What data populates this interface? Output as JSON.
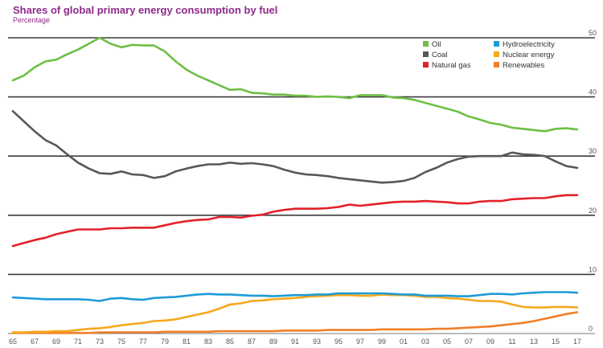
{
  "chart_data": {
    "type": "line",
    "title": "Shares of global primary energy consumption by fuel",
    "subtitle": "Percentage",
    "ylim": [
      0,
      50
    ],
    "yticks": [
      0,
      10,
      20,
      30,
      40,
      50
    ],
    "xlim": [
      1965,
      2017
    ],
    "xtick_labels": [
      "65",
      "67",
      "69",
      "71",
      "73",
      "75",
      "77",
      "79",
      "81",
      "83",
      "85",
      "87",
      "89",
      "91",
      "93",
      "95",
      "97",
      "99",
      "01",
      "03",
      "05",
      "07",
      "09",
      "11",
      "13",
      "15",
      "17"
    ],
    "grid": "horizontal",
    "legend_position": "top-right",
    "x": [
      1965,
      1966,
      1967,
      1968,
      1969,
      1970,
      1971,
      1972,
      1973,
      1974,
      1975,
      1976,
      1977,
      1978,
      1979,
      1980,
      1981,
      1982,
      1983,
      1984,
      1985,
      1986,
      1987,
      1988,
      1989,
      1990,
      1991,
      1992,
      1993,
      1994,
      1995,
      1996,
      1997,
      1998,
      1999,
      2000,
      2001,
      2002,
      2003,
      2004,
      2005,
      2006,
      2007,
      2008,
      2009,
      2010,
      2011,
      2012,
      2013,
      2014,
      2015,
      2016,
      2017
    ],
    "series": [
      {
        "name": "Oil",
        "color": "#6fbf44",
        "values": [
          42.8,
          43.6,
          45.0,
          46.0,
          46.3,
          47.2,
          48.0,
          49.0,
          50.0,
          49.0,
          48.4,
          48.8,
          48.7,
          48.7,
          47.7,
          46.0,
          44.6,
          43.6,
          42.8,
          42.0,
          41.2,
          41.3,
          40.7,
          40.6,
          40.4,
          40.4,
          40.2,
          40.2,
          40.0,
          40.1,
          40.0,
          39.8,
          40.3,
          40.3,
          40.3,
          39.9,
          39.8,
          39.5,
          39.0,
          38.5,
          38.0,
          37.5,
          36.7,
          36.2,
          35.6,
          35.3,
          34.8,
          34.6,
          34.4,
          34.2,
          34.6,
          34.7,
          34.5
        ]
      },
      {
        "name": "Coal",
        "color": "#58585a",
        "values": [
          37.6,
          35.9,
          34.2,
          32.7,
          31.8,
          30.3,
          28.9,
          27.9,
          27.1,
          27.0,
          27.4,
          26.9,
          26.8,
          26.3,
          26.6,
          27.4,
          27.9,
          28.3,
          28.6,
          28.6,
          28.9,
          28.7,
          28.8,
          28.6,
          28.3,
          27.7,
          27.2,
          26.9,
          26.8,
          26.6,
          26.3,
          26.1,
          25.9,
          25.7,
          25.5,
          25.6,
          25.8,
          26.3,
          27.3,
          28.0,
          28.9,
          29.5,
          29.9,
          30.0,
          30.0,
          30.0,
          30.6,
          30.3,
          30.2,
          30.0,
          29.1,
          28.3,
          28.0
        ]
      },
      {
        "name": "Natural gas",
        "color": "#e3202a",
        "values": [
          14.8,
          15.3,
          15.8,
          16.2,
          16.8,
          17.2,
          17.6,
          17.6,
          17.6,
          17.8,
          17.8,
          17.9,
          17.9,
          17.9,
          18.3,
          18.7,
          19.0,
          19.2,
          19.3,
          19.7,
          19.7,
          19.6,
          19.9,
          20.1,
          20.6,
          20.9,
          21.1,
          21.1,
          21.1,
          21.2,
          21.4,
          21.8,
          21.6,
          21.8,
          22.0,
          22.2,
          22.3,
          22.3,
          22.4,
          22.3,
          22.2,
          22.0,
          22.0,
          22.3,
          22.4,
          22.4,
          22.7,
          22.8,
          22.9,
          22.9,
          23.2,
          23.4,
          23.4
        ]
      },
      {
        "name": "Hydroelectricity",
        "color": "#1e9bd7",
        "values": [
          6.1,
          6.0,
          5.9,
          5.8,
          5.8,
          5.8,
          5.8,
          5.7,
          5.5,
          5.9,
          6.0,
          5.8,
          5.7,
          6.0,
          6.1,
          6.2,
          6.4,
          6.6,
          6.7,
          6.6,
          6.6,
          6.5,
          6.4,
          6.4,
          6.3,
          6.4,
          6.5,
          6.5,
          6.6,
          6.6,
          6.8,
          6.8,
          6.8,
          6.8,
          6.8,
          6.7,
          6.6,
          6.6,
          6.4,
          6.4,
          6.4,
          6.3,
          6.3,
          6.5,
          6.7,
          6.7,
          6.6,
          6.8,
          6.9,
          7.0,
          7.0,
          7.0,
          6.9
        ]
      },
      {
        "name": "Nuclear energy",
        "color": "#f5a81c",
        "values": [
          0.2,
          0.2,
          0.3,
          0.3,
          0.4,
          0.4,
          0.6,
          0.8,
          0.9,
          1.1,
          1.4,
          1.6,
          1.8,
          2.1,
          2.2,
          2.4,
          2.8,
          3.2,
          3.6,
          4.2,
          4.9,
          5.1,
          5.5,
          5.6,
          5.8,
          5.9,
          6.0,
          6.2,
          6.3,
          6.4,
          6.5,
          6.5,
          6.4,
          6.4,
          6.6,
          6.5,
          6.5,
          6.4,
          6.2,
          6.2,
          6.0,
          5.9,
          5.7,
          5.5,
          5.5,
          5.4,
          4.9,
          4.5,
          4.4,
          4.4,
          4.5,
          4.5,
          4.4
        ]
      },
      {
        "name": "Renewables",
        "color": "#f07f28",
        "values": [
          0.1,
          0.1,
          0.1,
          0.1,
          0.1,
          0.1,
          0.1,
          0.1,
          0.2,
          0.2,
          0.2,
          0.2,
          0.2,
          0.2,
          0.3,
          0.3,
          0.3,
          0.3,
          0.3,
          0.4,
          0.4,
          0.4,
          0.4,
          0.4,
          0.4,
          0.5,
          0.5,
          0.5,
          0.5,
          0.6,
          0.6,
          0.6,
          0.6,
          0.6,
          0.7,
          0.7,
          0.7,
          0.7,
          0.7,
          0.8,
          0.8,
          0.9,
          1.0,
          1.1,
          1.2,
          1.4,
          1.6,
          1.8,
          2.1,
          2.5,
          2.9,
          3.3,
          3.6
        ]
      }
    ]
  }
}
